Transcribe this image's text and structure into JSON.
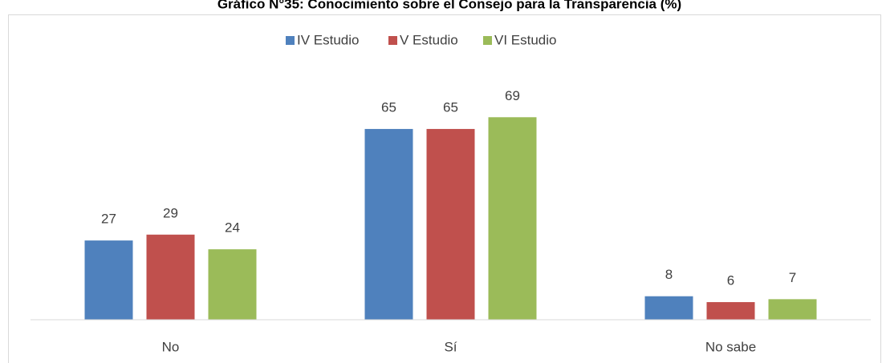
{
  "chart_data": {
    "type": "bar",
    "title": "Gráfico N°35: Conocimiento sobre el Consejo para la Transparencia (%)",
    "categories": [
      "No",
      "Sí",
      "No sabe"
    ],
    "series": [
      {
        "name": "IV Estudio",
        "color": "#4f81bd",
        "values": [
          27,
          65,
          8
        ]
      },
      {
        "name": "V Estudio",
        "color": "#c0504d",
        "values": [
          29,
          65,
          6
        ]
      },
      {
        "name": "VI Estudio",
        "color": "#9bbb59",
        "values": [
          24,
          69,
          7
        ]
      }
    ],
    "ylim": [
      0,
      80
    ],
    "legend": "top"
  }
}
